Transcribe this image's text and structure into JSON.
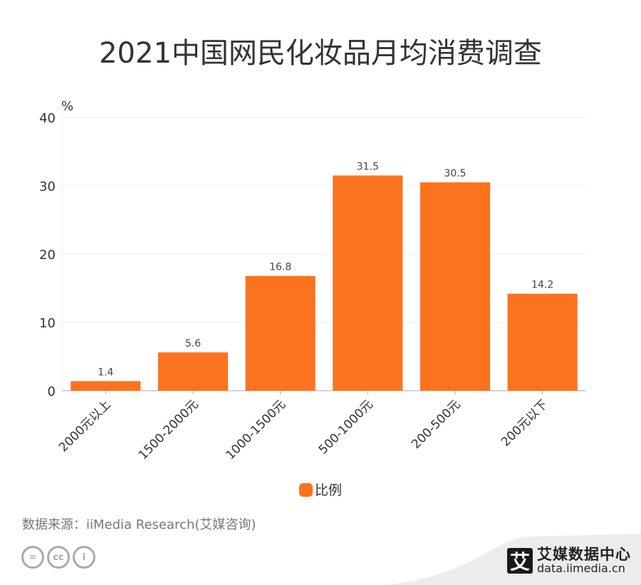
{
  "title": "2021中国网民化妆品月均消费调查",
  "chart_data": {
    "type": "bar",
    "title": "2021中国网民化妆品月均消费调查",
    "ylabel": "%",
    "xlabel": "",
    "ylim": [
      0,
      40
    ],
    "yticks": [
      0,
      10,
      20,
      30,
      40
    ],
    "grid": true,
    "legend_position": "bottom",
    "categories": [
      "2000元以上",
      "1500-2000元",
      "1000-1500元",
      "500-1000元",
      "200-500元",
      "200元以下"
    ],
    "series": [
      {
        "name": "比例",
        "values": [
          1.4,
          5.6,
          16.8,
          31.5,
          30.5,
          14.2
        ],
        "color": "#FC731D"
      }
    ]
  },
  "source": "数据来源：iiMedia Research(艾媒咨询)",
  "license_icons": [
    "cc-nd-icon",
    "cc-icon",
    "cc-by-icon"
  ],
  "license_labels": [
    "=",
    "cc",
    "i"
  ],
  "brand": {
    "logo_char": "艾",
    "name": "艾媒数据中心",
    "url": "data.iimedia.cn"
  }
}
